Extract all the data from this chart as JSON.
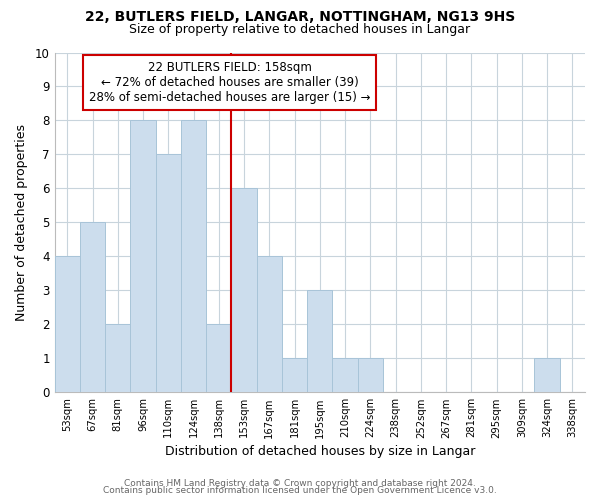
{
  "title1": "22, BUTLERS FIELD, LANGAR, NOTTINGHAM, NG13 9HS",
  "title2": "Size of property relative to detached houses in Langar",
  "xlabel": "Distribution of detached houses by size in Langar",
  "ylabel": "Number of detached properties",
  "bin_labels": [
    "53sqm",
    "67sqm",
    "81sqm",
    "96sqm",
    "110sqm",
    "124sqm",
    "138sqm",
    "153sqm",
    "167sqm",
    "181sqm",
    "195sqm",
    "210sqm",
    "224sqm",
    "238sqm",
    "252sqm",
    "267sqm",
    "281sqm",
    "295sqm",
    "309sqm",
    "324sqm",
    "338sqm"
  ],
  "bar_heights": [
    4,
    5,
    2,
    8,
    7,
    8,
    2,
    6,
    4,
    1,
    3,
    1,
    1,
    0,
    0,
    0,
    0,
    0,
    0,
    1,
    0
  ],
  "bar_color": "#ccdded",
  "bar_edge_color": "#a8c4d8",
  "highlight_index": 7,
  "highlight_color": "#cc0000",
  "ylim": [
    0,
    10
  ],
  "yticks": [
    0,
    1,
    2,
    3,
    4,
    5,
    6,
    7,
    8,
    9,
    10
  ],
  "annotation_line1": "22 BUTLERS FIELD: 158sqm",
  "annotation_line2": "← 72% of detached houses are smaller (39)",
  "annotation_line3": "28% of semi-detached houses are larger (15) →",
  "footer1": "Contains HM Land Registry data © Crown copyright and database right 2024.",
  "footer2": "Contains public sector information licensed under the Open Government Licence v3.0.",
  "background_color": "#ffffff",
  "grid_color": "#c8d4dc"
}
